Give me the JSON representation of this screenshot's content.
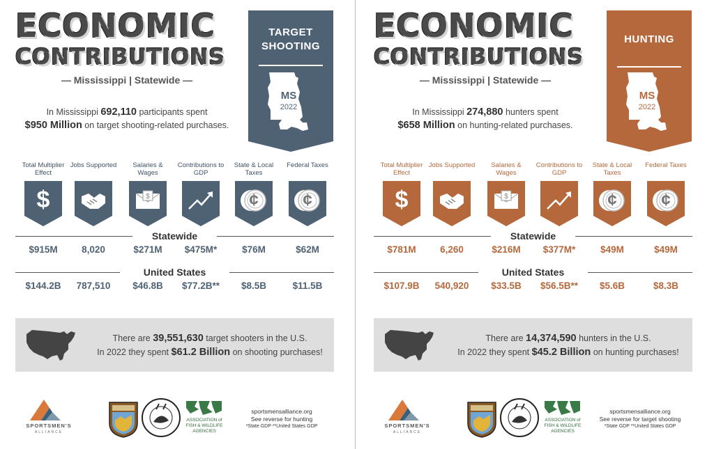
{
  "colors": {
    "shooting_accent": "#4f6274",
    "hunting_accent": "#b5683c",
    "title_gray": "#4a4a4a",
    "box_gray": "#dedede"
  },
  "panels": [
    {
      "title_line1": "ECONOMIC",
      "title_line2": "CONTRIBUTIONS",
      "subtitle": "— Mississippi | Statewide —",
      "banner_title_1": "TARGET",
      "banner_title_2": "SHOOTING",
      "state_code": "MS",
      "year": "2022",
      "intro_a": "In Mississippi ",
      "intro_num": "692,110",
      "intro_b": " participants spent",
      "intro_money": "$950 Million",
      "intro_c": " on target shooting-related purchases.",
      "categories": [
        {
          "label": "Total Multiplier Effect",
          "icon": "dollar-icon",
          "glyph": "$"
        },
        {
          "label": "Jobs Supported",
          "icon": "handshake-icon",
          "glyph": ""
        },
        {
          "label": "Salaries & Wages",
          "icon": "paycheck-icon",
          "glyph": ""
        },
        {
          "label": "Contributions to GDP",
          "icon": "trend-up-icon",
          "glyph": ""
        },
        {
          "label": "State & Local Taxes",
          "icon": "coins-icon",
          "glyph": "¢"
        },
        {
          "label": "Federal Taxes",
          "icon": "coins-icon",
          "glyph": "¢"
        }
      ],
      "statewide_label": "Statewide",
      "statewide_values": [
        "$915M",
        "8,020",
        "$271M",
        "$475M*",
        "$76M",
        "$62M"
      ],
      "us_label": "United States",
      "us_values": [
        "$144.2B",
        "787,510",
        "$46.8B",
        "$77.2B**",
        "$8.5B",
        "$11.5B"
      ],
      "box_a": "There are ",
      "box_num": "39,551,630",
      "box_b": " target shooters in the U.S.",
      "box_c": "In 2022 they spent ",
      "box_money": "$61.2 Billion",
      "box_d": " on shooting purchases!",
      "footer_site": "sportsmensalliance.org",
      "footer_reverse": "See reverse for hunting",
      "footer_note": "*State GDP **United States GDP",
      "logo_text": "SPORTSMEN'S",
      "logo_sub": "ALLIANCE",
      "afwa_text_1": "ASSOCIATION of",
      "afwa_text_2": "FISH & WILDLIFE",
      "afwa_text_3": "AGENCIES"
    },
    {
      "title_line1": "ECONOMIC",
      "title_line2": "CONTRIBUTIONS",
      "subtitle": "— Mississippi | Statewide —",
      "banner_title_1": "HUNTING",
      "banner_title_2": "",
      "state_code": "MS",
      "year": "2022",
      "intro_a": "In Mississippi ",
      "intro_num": "274,880",
      "intro_b": " hunters spent",
      "intro_money": "$658 Million",
      "intro_c": " on hunting-related purchases.",
      "categories": [
        {
          "label": "Total Multiplier Effect",
          "icon": "dollar-icon",
          "glyph": "$"
        },
        {
          "label": "Jobs Supported",
          "icon": "handshake-icon",
          "glyph": ""
        },
        {
          "label": "Salaries & Wages",
          "icon": "paycheck-icon",
          "glyph": ""
        },
        {
          "label": "Contributions to GDP",
          "icon": "trend-up-icon",
          "glyph": ""
        },
        {
          "label": "State & Local Taxes",
          "icon": "coins-icon",
          "glyph": "¢"
        },
        {
          "label": "Federal Taxes",
          "icon": "coins-icon",
          "glyph": "¢"
        }
      ],
      "statewide_label": "Statewide",
      "statewide_values": [
        "$781M",
        "6,260",
        "$216M",
        "$377M*",
        "$49M",
        "$49M"
      ],
      "us_label": "United States",
      "us_values": [
        "$107.9B",
        "540,920",
        "$33.5B",
        "$56.5B**",
        "$5.6B",
        "$8.3B"
      ],
      "box_a": "There are ",
      "box_num": "14,374,590",
      "box_b": " hunters in the U.S.",
      "box_c": "In 2022 they spent ",
      "box_money": "$45.2 Billion",
      "box_d": " on hunting purchases!",
      "footer_site": "sportsmensalliance.org",
      "footer_reverse": "See reverse for target shooting",
      "footer_note": "*State GDP **United States GDP",
      "logo_text": "SPORTSMEN'S",
      "logo_sub": "ALLIANCE",
      "afwa_text_1": "ASSOCIATION of",
      "afwa_text_2": "FISH & WILDLIFE",
      "afwa_text_3": "AGENCIES"
    }
  ]
}
